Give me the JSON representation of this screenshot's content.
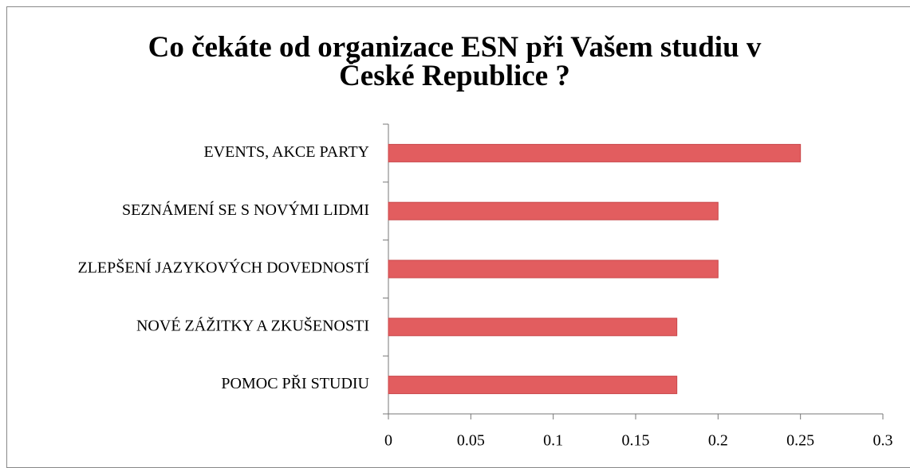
{
  "chart_data": {
    "type": "bar",
    "orientation": "horizontal",
    "title": "Co čekáte od organizace ESN při Vašem studiu v České Republice ?",
    "categories": [
      "EVENTS, AKCE PARTY",
      "SEZNÁMENÍ SE S NOVÝMI LIDMI",
      "ZLEPŠENÍ JAZYKOVÝCH DOVEDNOSTÍ",
      "NOVÉ ZÁŽITKY A ZKUŠENOSTI",
      "POMOC PŘI STUDIU"
    ],
    "values": [
      0.25,
      0.2,
      0.2,
      0.175,
      0.175
    ],
    "color": "#e25d5f",
    "xlim": [
      0,
      0.3
    ],
    "xticks": [
      0,
      0.05,
      0.1,
      0.15,
      0.2,
      0.25,
      0.3
    ]
  }
}
